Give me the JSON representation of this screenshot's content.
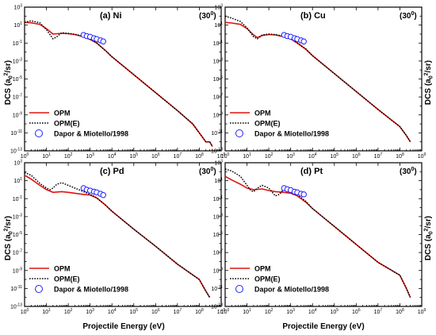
{
  "figure": {
    "xlabel": "Projectile Energy (eV)",
    "ylabel_main": "DCS (a",
    "ylabel_sub": "0",
    "ylabel_sup": "2",
    "ylabel_end": "/sr)",
    "legend": [
      {
        "label": "OPM",
        "style": "solid",
        "color": "#e0120e"
      },
      {
        "label": "OPM(E)",
        "style": "dotted",
        "color": "#000000"
      },
      {
        "label": "Dapor & Miotello/1998",
        "style": "circle",
        "color": "#2020ff"
      }
    ],
    "x_tick_labels": [
      "10",
      "10",
      "10",
      "10",
      "10",
      "10",
      "10",
      "10",
      "10",
      "10"
    ],
    "x_tick_exps": [
      "0",
      "1",
      "2",
      "3",
      "4",
      "5",
      "6",
      "7",
      "8",
      "9"
    ],
    "y_tick_labels": [
      "10",
      "10",
      "10",
      "10",
      "10",
      "10",
      "10",
      "10",
      "10"
    ],
    "y_tick_exps": [
      "-13",
      "-11",
      "-9",
      "-7",
      "-5",
      "-3",
      "-1",
      "1",
      "3"
    ]
  },
  "chart_data": [
    {
      "type": "line",
      "xscale": "log",
      "yscale": "log",
      "title": "(a) Ni",
      "angle_text": "(30",
      "angle_sup": "0",
      "angle_end": ")",
      "xlim": [
        1,
        1000000000
      ],
      "ylim": [
        1e-13,
        1000
      ],
      "series": [
        {
          "name": "OPM",
          "x": [
            1,
            2,
            5,
            10,
            20,
            50,
            100,
            200,
            500,
            1000,
            2000,
            5000,
            10000,
            100000,
            1000000,
            10000000,
            50000000,
            100000000,
            200000000,
            300000000,
            400000000
          ],
          "y": [
            20,
            18,
            12,
            4,
            1,
            1.2,
            1.1,
            0.9,
            0.5,
            0.25,
            0.1,
            0.015,
            0.003,
            3e-05,
            3e-07,
            3e-09,
            1e-10,
            1e-11,
            1e-12,
            1e-12,
            3e-13
          ]
        },
        {
          "name": "OPM(E)",
          "x": [
            1,
            2,
            5,
            10,
            15,
            20,
            30,
            50,
            100,
            200,
            500,
            1000,
            2000,
            5000,
            10000,
            100000,
            1000000,
            10000000,
            50000000,
            100000000,
            200000000,
            300000000,
            400000000
          ],
          "y": [
            20,
            30,
            18,
            3,
            0.8,
            0.3,
            0.5,
            1.4,
            1.2,
            0.95,
            0.55,
            0.27,
            0.11,
            0.015,
            0.003,
            3e-05,
            3e-07,
            3e-09,
            1e-10,
            1e-11,
            1e-12,
            1e-12,
            3e-13
          ]
        },
        {
          "name": "Dapor & Miotello/1998",
          "x": [
            500,
            700,
            1000,
            1500,
            2000,
            3000,
            4000
          ],
          "y": [
            0.8,
            0.6,
            0.5,
            0.35,
            0.28,
            0.2,
            0.15
          ]
        }
      ]
    },
    {
      "type": "line",
      "xscale": "log",
      "yscale": "log",
      "title": "(b) Cu",
      "angle_text": "(30",
      "angle_sup": "0",
      "angle_end": ")",
      "xlim": [
        1,
        1000000000
      ],
      "ylim": [
        1e-13,
        1000
      ],
      "series": [
        {
          "name": "OPM",
          "x": [
            1,
            2,
            5,
            10,
            20,
            30,
            50,
            100,
            200,
            500,
            1000,
            2000,
            5000,
            10000,
            100000,
            1000000,
            10000000,
            100000000,
            200000000,
            300000000
          ],
          "y": [
            20,
            17,
            12,
            4,
            0.8,
            0.4,
            0.7,
            0.9,
            0.8,
            0.5,
            0.3,
            0.1,
            0.02,
            0.004,
            4e-05,
            4e-07,
            4e-09,
            5e-11,
            5e-12,
            1e-12
          ]
        },
        {
          "name": "OPM(E)",
          "x": [
            1,
            2,
            5,
            10,
            20,
            30,
            50,
            100,
            200,
            500,
            1000,
            2000,
            5000,
            10000,
            100000,
            1000000,
            10000000,
            100000000,
            200000000,
            300000000
          ],
          "y": [
            100,
            60,
            25,
            5,
            0.5,
            0.3,
            0.8,
            1,
            0.9,
            0.55,
            0.32,
            0.11,
            0.022,
            0.004,
            4e-05,
            4e-07,
            4e-09,
            5e-11,
            5e-12,
            1e-12
          ]
        },
        {
          "name": "Dapor & Miotello/1998",
          "x": [
            500,
            700,
            1000,
            1500,
            2000,
            3000,
            4000
          ],
          "y": [
            0.8,
            0.6,
            0.5,
            0.35,
            0.28,
            0.2,
            0.15
          ]
        }
      ]
    },
    {
      "type": "line",
      "xscale": "log",
      "yscale": "log",
      "title": "(c) Pd",
      "angle_text": "(30",
      "angle_sup": "0",
      "angle_end": ")",
      "xlim": [
        1,
        1000000000
      ],
      "ylim": [
        1e-13,
        1000
      ],
      "series": [
        {
          "name": "OPM",
          "x": [
            1,
            2,
            5,
            10,
            20,
            50,
            100,
            200,
            500,
            1000,
            2000,
            5000,
            10000,
            100000,
            1000000,
            10000000,
            100000000,
            200000000,
            300000000
          ],
          "y": [
            40,
            15,
            3,
            1,
            0.5,
            0.6,
            0.5,
            0.4,
            0.3,
            0.25,
            0.12,
            0.02,
            0.004,
            4e-05,
            5e-07,
            5e-09,
            1e-10,
            5e-12,
            1e-12
          ]
        },
        {
          "name": "OPM(E)",
          "x": [
            1,
            2,
            5,
            10,
            15,
            20,
            30,
            50,
            100,
            200,
            500,
            1000,
            2000,
            5000,
            10000,
            100000,
            1000000,
            10000000,
            100000000,
            200000000,
            300000000
          ],
          "y": [
            80,
            40,
            5,
            1.5,
            1,
            1.5,
            4,
            6,
            3,
            1.5,
            0.6,
            0.3,
            0.13,
            0.02,
            0.004,
            4e-05,
            5e-07,
            5e-09,
            1e-10,
            5e-12,
            1e-12
          ]
        },
        {
          "name": "Dapor & Miotello/1998",
          "x": [
            500,
            700,
            1000,
            1500,
            2000,
            3000,
            4000
          ],
          "y": [
            1.5,
            1.0,
            0.8,
            0.6,
            0.5,
            0.35,
            0.25
          ]
        }
      ]
    },
    {
      "type": "line",
      "xscale": "log",
      "yscale": "log",
      "title": "(d) Pt",
      "angle_text": "(30",
      "angle_sup": "0",
      "angle_end": ")",
      "xlim": [
        1,
        1000000000
      ],
      "ylim": [
        1e-13,
        1000
      ],
      "series": [
        {
          "name": "OPM",
          "x": [
            1,
            2,
            5,
            10,
            20,
            50,
            100,
            200,
            500,
            1000,
            2000,
            5000,
            10000,
            100000,
            1000000,
            10000000,
            100000000,
            200000000,
            300000000
          ],
          "y": [
            30,
            12,
            4,
            1.5,
            1,
            1.2,
            0.8,
            0.6,
            0.5,
            0.4,
            0.2,
            0.04,
            0.008,
            8e-05,
            8e-07,
            8e-09,
            3e-10,
            1e-11,
            1e-12
          ]
        },
        {
          "name": "OPM(E)",
          "x": [
            1,
            2,
            5,
            10,
            15,
            20,
            30,
            50,
            100,
            200,
            300,
            500,
            1000,
            2000,
            5000,
            10000,
            100000,
            1000000,
            10000000,
            100000000,
            200000000,
            300000000
          ],
          "y": [
            200,
            120,
            30,
            3,
            0.8,
            0.6,
            1.5,
            3,
            1.5,
            0.2,
            0.3,
            1.2,
            0.7,
            0.3,
            0.05,
            0.008,
            8e-05,
            8e-07,
            8e-09,
            3e-10,
            1e-11,
            1e-12
          ]
        },
        {
          "name": "Dapor & Miotello/1998",
          "x": [
            500,
            700,
            1000,
            1500,
            2000,
            3000,
            4000
          ],
          "y": [
            1.5,
            1.1,
            0.9,
            0.6,
            0.5,
            0.35,
            0.3
          ]
        }
      ]
    }
  ]
}
